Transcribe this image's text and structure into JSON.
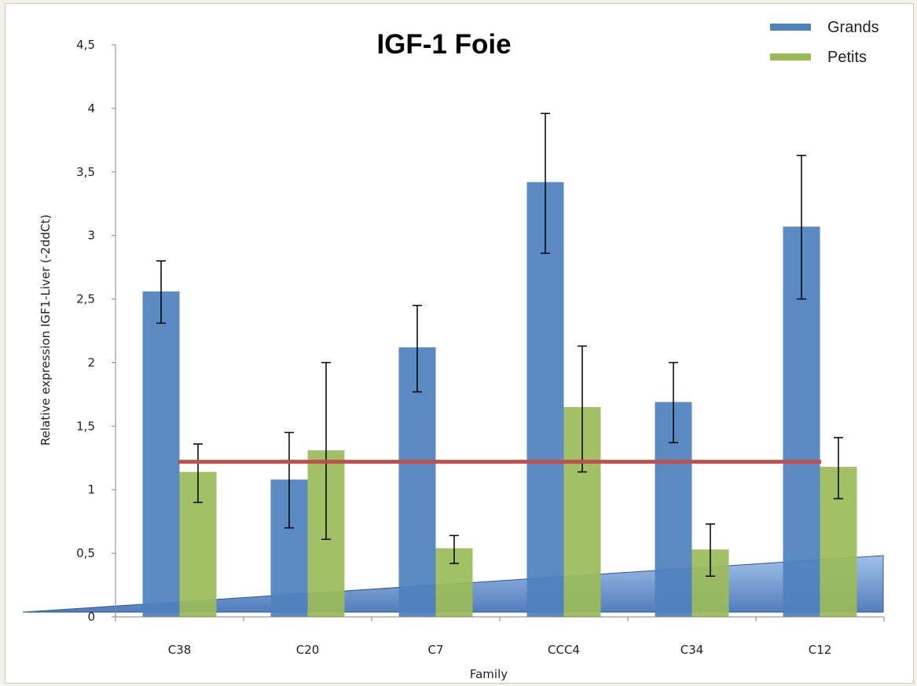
{
  "colors": {
    "grands": "#4f81bd",
    "petits": "#9bbb59",
    "threshold": "#c0504d",
    "wedge": "#8fb4e3"
  },
  "chart_data": {
    "type": "bar",
    "title": "IGF-1 Foie",
    "xlabel": "Family",
    "ylabel": "Relative expression IGF1-Liver (-2ddCt)",
    "categories": [
      "C38",
      "C20",
      "C7",
      "CCC4",
      "C34",
      "C12"
    ],
    "ylim": [
      0,
      4.5
    ],
    "yticks": [
      "0",
      "0,5",
      "1",
      "1,5",
      "2",
      "2,5",
      "3",
      "3,5",
      "4",
      "4,5"
    ],
    "series": [
      {
        "name": "Grands",
        "values": [
          2.56,
          1.08,
          2.12,
          3.42,
          1.69,
          3.07
        ],
        "error_low": [
          2.31,
          0.7,
          1.77,
          2.86,
          1.37,
          2.5
        ],
        "error_high": [
          2.8,
          1.45,
          2.45,
          3.96,
          2.0,
          3.63
        ]
      },
      {
        "name": "Petits",
        "values": [
          1.14,
          1.31,
          0.54,
          1.65,
          0.53,
          1.18
        ],
        "error_low": [
          0.9,
          0.61,
          0.42,
          1.14,
          0.32,
          0.93
        ],
        "error_high": [
          1.36,
          2.0,
          0.64,
          2.13,
          0.73,
          1.41
        ]
      }
    ],
    "threshold_line": 1.22,
    "legend_position": "top-right",
    "grid": false
  }
}
